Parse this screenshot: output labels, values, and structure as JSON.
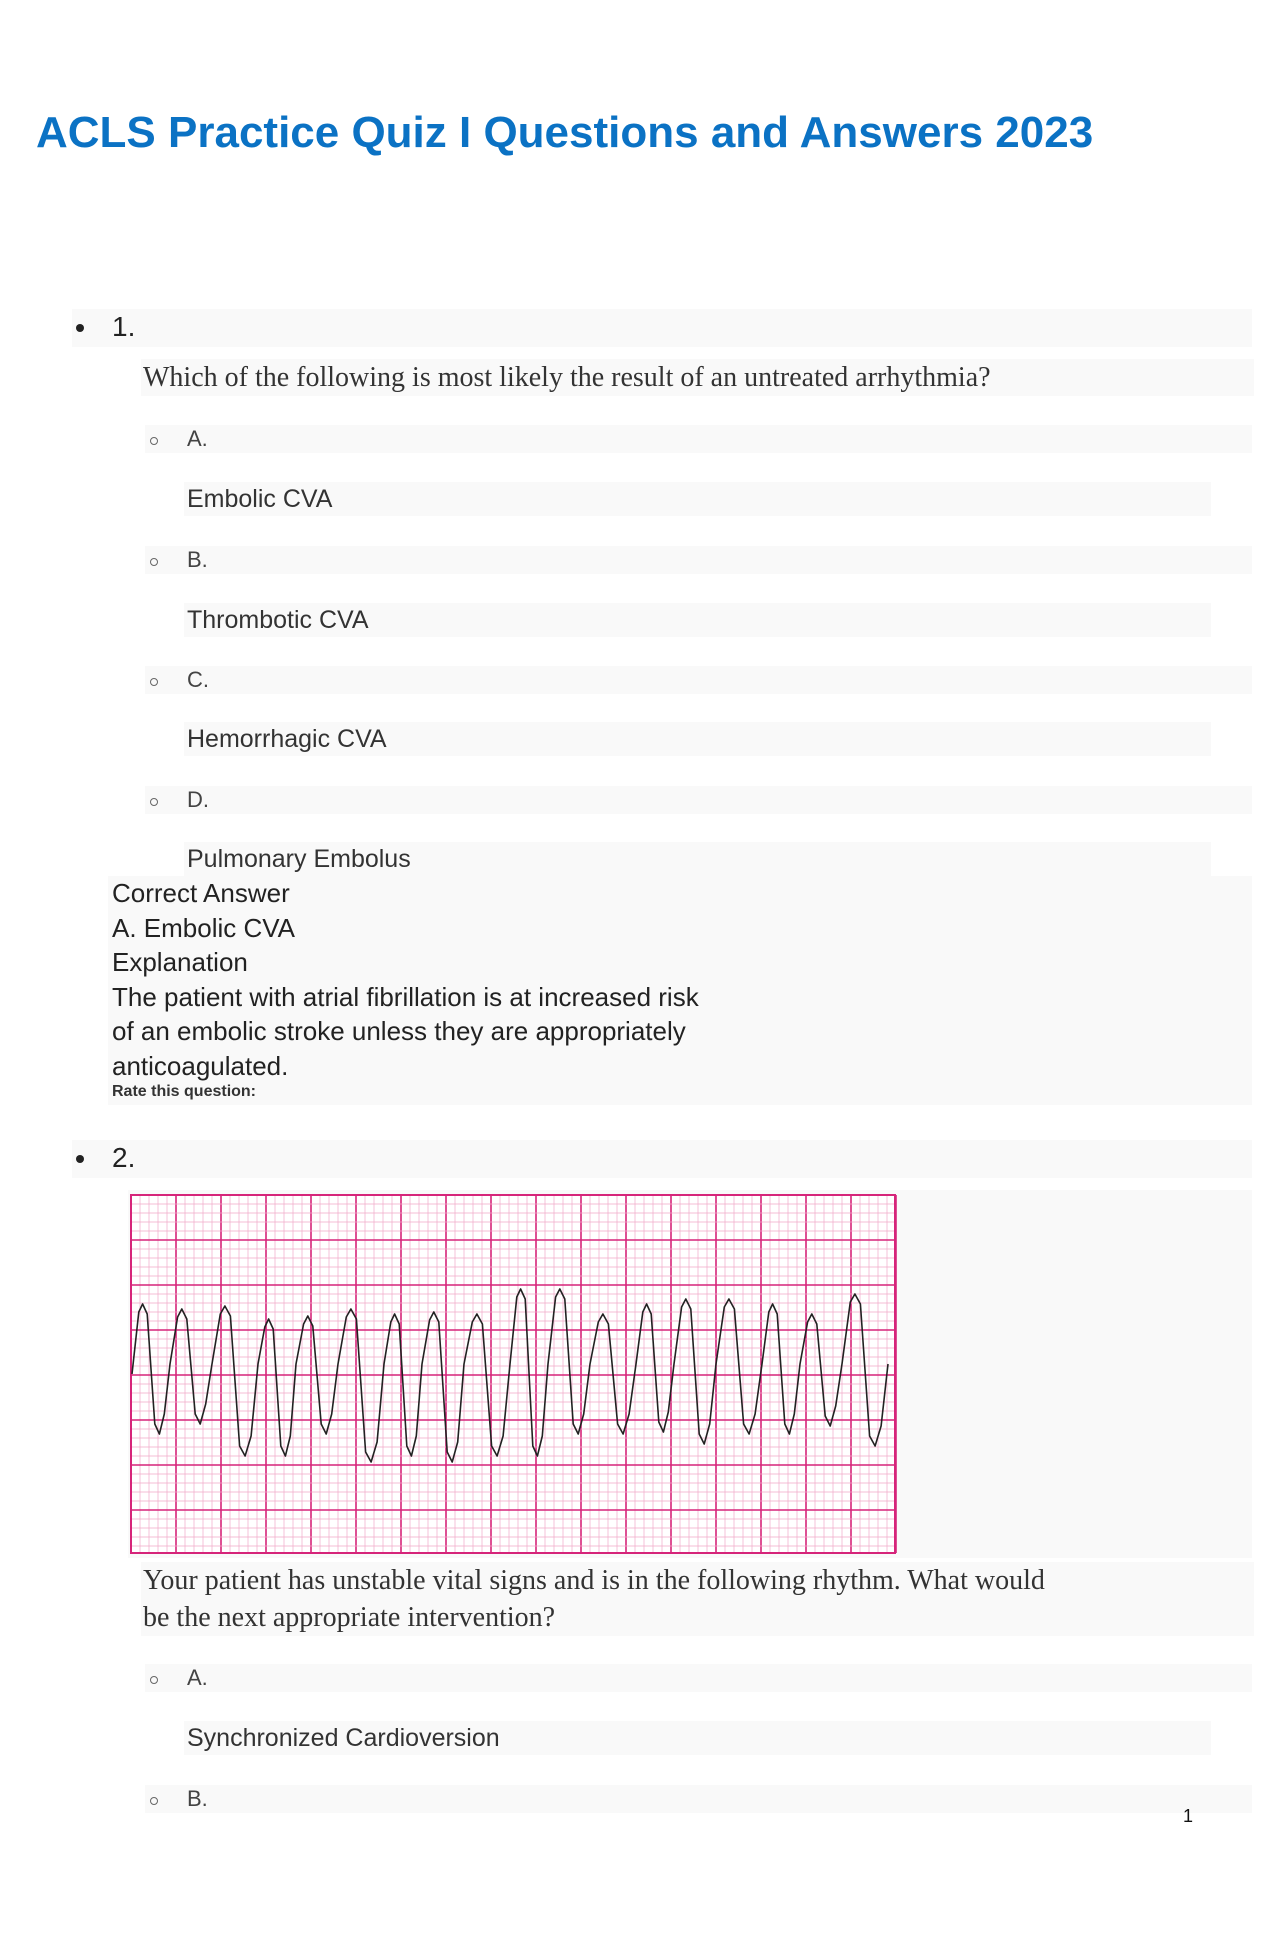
{
  "title": "ACLS Practice Quiz I Questions and Answers 2023",
  "questions": [
    {
      "number": "1.",
      "text": "Which of the following is most likely the result of an untreated arrhythmia?",
      "options": [
        {
          "label": "A.",
          "text": "Embolic CVA"
        },
        {
          "label": "B.",
          "text": "Thrombotic CVA"
        },
        {
          "label": "C.",
          "text": "Hemorrhagic CVA"
        },
        {
          "label": "D.",
          "text": "Pulmonary Embolus"
        }
      ],
      "correct_answer_heading": "Correct Answer",
      "correct_answer": "A. Embolic CVA",
      "explanation_heading": "Explanation",
      "explanation_lines": [
        "The patient with atrial fibrillation is at increased risk",
        "of an embolic stroke unless they are appropriately",
        "anticoagulated."
      ],
      "rate_label": "Rate this question:"
    },
    {
      "number": "2.",
      "image": "ecg-rhythm-strip",
      "text_lines": [
        "Your patient has unstable vital signs and is in the following rhythm.  What would",
        "be the next appropriate intervention?"
      ],
      "options": [
        {
          "label": "A.",
          "text": "Synchronized Cardioversion"
        },
        {
          "label": "B.",
          "text": ""
        }
      ]
    }
  ],
  "page_number": "1",
  "colors": {
    "title": "#0b72c4",
    "ecg_grid": "#d6247a",
    "ecg_grid_fine": "#f0a8c8"
  }
}
